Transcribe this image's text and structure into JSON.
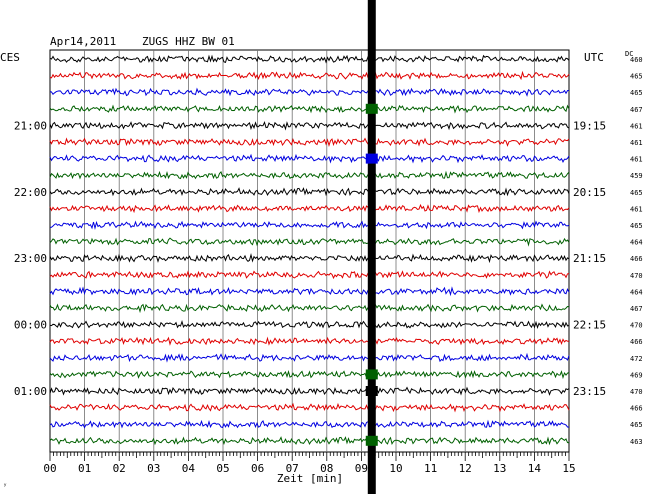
{
  "header": {
    "date": "Apr14,2011",
    "station": "ZUGS HHZ BW 01",
    "left_tz": "CES",
    "right_tz": "UTC",
    "dc_label": "DC"
  },
  "corner_mark": "ʸ",
  "colors": {
    "trace_cycle": [
      "#000000",
      "#e00000",
      "#0000e0",
      "#006000"
    ],
    "grid": "#000000",
    "event": "#000000"
  },
  "chart_data": {
    "type": "line",
    "title": "Apr14,2011   ZUGS HHZ BW 01",
    "xlabel": "Zeit [min]",
    "ylabel": "",
    "x_ticks": [
      "00",
      "01",
      "02",
      "03",
      "04",
      "05",
      "06",
      "07",
      "08",
      "09",
      "10",
      "11",
      "12",
      "13",
      "14",
      "15"
    ],
    "xlim": [
      0,
      15
    ],
    "traces_per_hour": 4,
    "trace_count": 24,
    "left_time_labels": [
      {
        "trace": 4,
        "text": "21:00"
      },
      {
        "trace": 8,
        "text": "22:00"
      },
      {
        "trace": 12,
        "text": "23:00"
      },
      {
        "trace": 16,
        "text": "00:00"
      },
      {
        "trace": 20,
        "text": "01:00"
      }
    ],
    "right_time_labels": [
      {
        "trace": 4,
        "text": "19:15"
      },
      {
        "trace": 8,
        "text": "20:15"
      },
      {
        "trace": 12,
        "text": "21:15"
      },
      {
        "trace": 16,
        "text": "22:15"
      },
      {
        "trace": 20,
        "text": "23:15"
      }
    ],
    "dc_offsets": [
      460,
      465,
      465,
      467,
      461,
      461,
      461,
      459,
      465,
      461,
      465,
      464,
      466,
      470,
      464,
      467,
      470,
      466,
      472,
      469,
      470,
      466,
      465,
      463
    ],
    "event_minute": 9.3,
    "grid": true
  }
}
